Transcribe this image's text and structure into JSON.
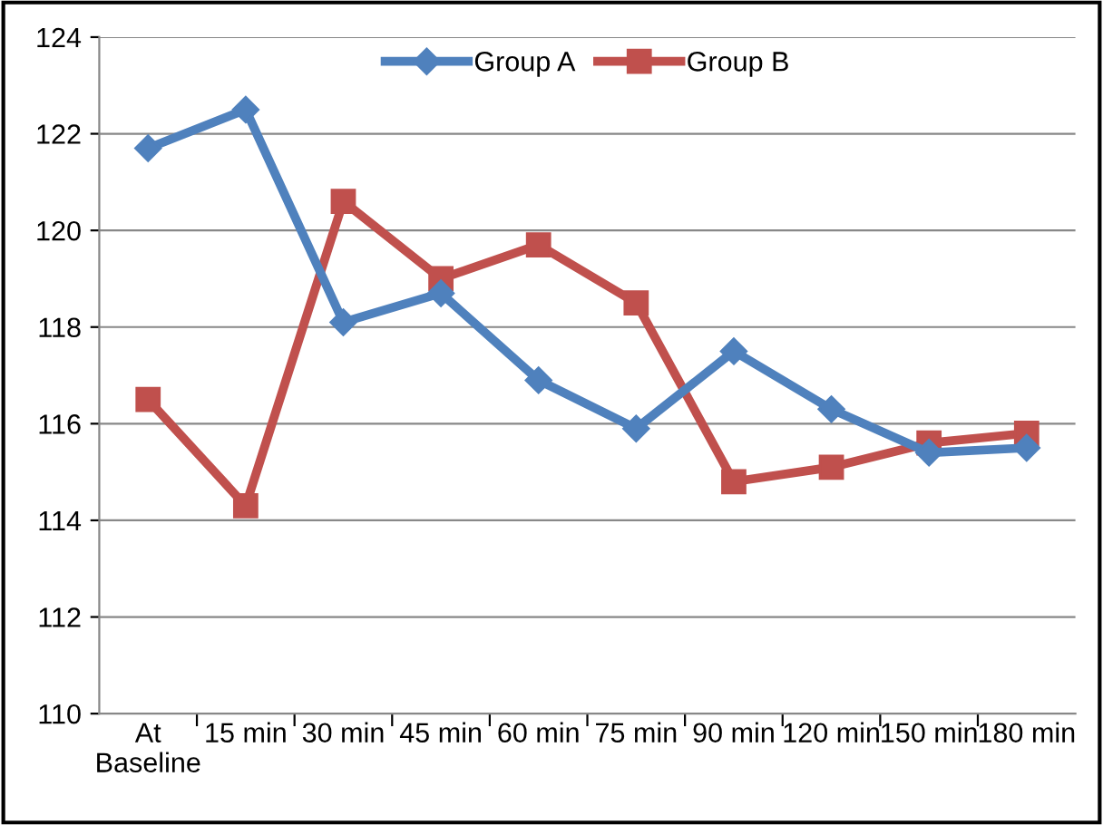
{
  "chart_data": {
    "type": "line",
    "categories": [
      "At\nBaseline",
      "15 min",
      "30 min",
      "45 min",
      "60 min",
      "75 min",
      "90 min",
      "120 min",
      "150 min",
      "180 min"
    ],
    "series": [
      {
        "name": "Group A",
        "color": "#4f81bd",
        "marker": "diamond",
        "values": [
          121.7,
          122.5,
          118.1,
          118.7,
          116.9,
          115.9,
          117.5,
          116.3,
          115.4,
          115.5
        ]
      },
      {
        "name": "Group B",
        "color": "#c0504d",
        "marker": "square",
        "values": [
          116.5,
          114.3,
          120.6,
          119.0,
          119.7,
          118.5,
          114.8,
          115.1,
          115.6,
          115.8
        ]
      }
    ],
    "ylim": [
      110,
      124
    ],
    "yticks": [
      110,
      112,
      114,
      116,
      118,
      120,
      122,
      124
    ],
    "grid": "y",
    "legend": "top",
    "line_style": "solid"
  }
}
